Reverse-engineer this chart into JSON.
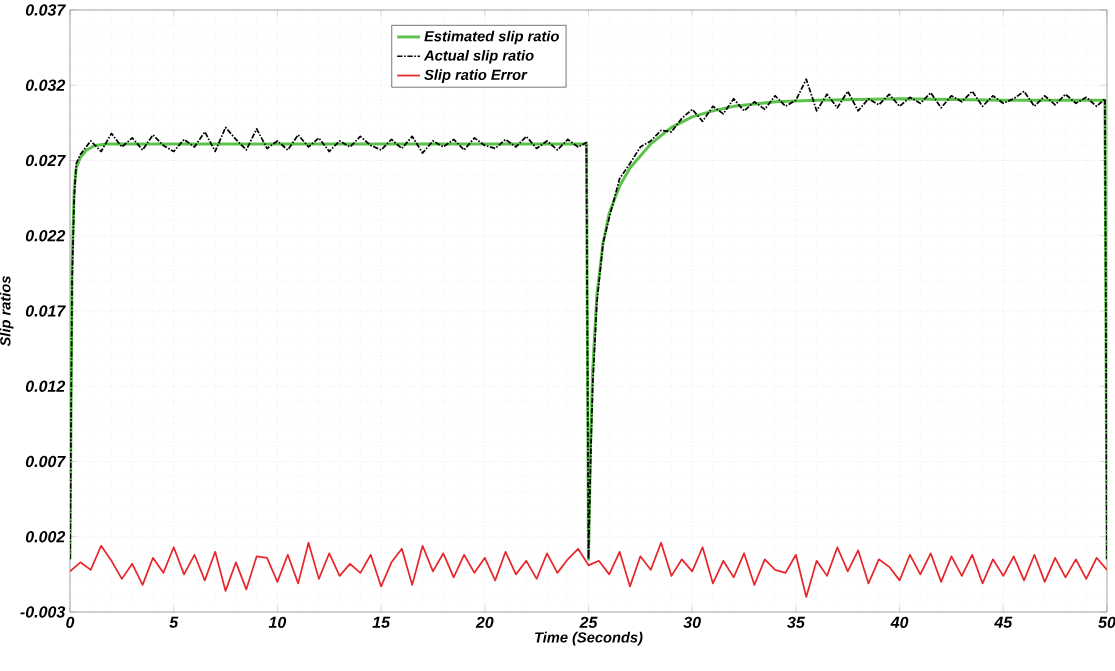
{
  "chart_data": {
    "type": "line",
    "xlabel": "Time (Seconds)",
    "ylabel": "Slip ratios",
    "xlim": [
      0,
      50
    ],
    "ylim": [
      -0.003,
      0.037
    ],
    "xticks": [
      0,
      5,
      10,
      15,
      20,
      25,
      30,
      35,
      40,
      45,
      50
    ],
    "yticks": [
      -0.003,
      0.002,
      0.007,
      0.012,
      0.017,
      0.022,
      0.027,
      0.032,
      0.037
    ],
    "grid": true,
    "legend": "top",
    "marker": "none",
    "series": [
      {
        "name": "Estimated slip ratio",
        "color": "#5bc24a",
        "line_style": "solid",
        "x": [
          0,
          0.1,
          0.2,
          0.3,
          0.5,
          0.8,
          1.2,
          1.8,
          3,
          10,
          20,
          24.9,
          25,
          25.1,
          25.2,
          25.4,
          25.7,
          26,
          26.5,
          27,
          28,
          29,
          30,
          31,
          32,
          34,
          36,
          40,
          45,
          49.9,
          50
        ],
        "values": [
          0.0005,
          0.02,
          0.025,
          0.0265,
          0.0272,
          0.0277,
          0.028,
          0.0281,
          0.0281,
          0.0281,
          0.0281,
          0.0281,
          0.0005,
          0.008,
          0.013,
          0.018,
          0.0215,
          0.0235,
          0.0253,
          0.0265,
          0.0281,
          0.0292,
          0.0299,
          0.0303,
          0.0306,
          0.0309,
          0.031,
          0.0311,
          0.031,
          0.031,
          0.0005
        ]
      },
      {
        "name": "Actual slip ratio",
        "color": "#000000",
        "line_style": "dashed",
        "x": [
          0,
          0.1,
          0.2,
          0.3,
          0.5,
          1,
          1.5,
          2,
          2.5,
          3,
          3.5,
          4,
          4.5,
          5,
          5.5,
          6,
          6.5,
          7,
          7.5,
          8,
          8.5,
          9,
          9.5,
          10,
          10.5,
          11,
          11.5,
          12,
          12.5,
          13,
          13.5,
          14,
          14.5,
          15,
          15.5,
          16,
          16.5,
          17,
          17.5,
          18,
          18.5,
          19,
          19.5,
          20,
          20.5,
          21,
          21.5,
          22,
          22.5,
          23,
          23.5,
          24,
          24.5,
          24.9,
          25,
          25.1,
          25.2,
          25.4,
          25.7,
          26,
          26.5,
          27,
          27.5,
          28,
          28.5,
          29,
          29.5,
          30,
          30.5,
          31,
          31.5,
          32,
          32.5,
          33,
          33.5,
          34,
          34.5,
          35,
          35.5,
          36,
          36.5,
          37,
          37.5,
          38,
          38.5,
          39,
          39.5,
          40,
          40.5,
          41,
          41.5,
          42,
          42.5,
          43,
          43.5,
          44,
          44.5,
          45,
          45.5,
          46,
          46.5,
          47,
          47.5,
          48,
          48.5,
          49,
          49.5,
          49.9,
          50
        ],
        "values": [
          0.0005,
          0.019,
          0.0245,
          0.0268,
          0.0274,
          0.0283,
          0.0276,
          0.0288,
          0.0279,
          0.0285,
          0.0277,
          0.0287,
          0.028,
          0.0276,
          0.0284,
          0.0279,
          0.0289,
          0.0276,
          0.0292,
          0.0284,
          0.0277,
          0.0291,
          0.0278,
          0.0283,
          0.0277,
          0.0287,
          0.0279,
          0.0285,
          0.0276,
          0.0283,
          0.0279,
          0.0286,
          0.028,
          0.0277,
          0.0284,
          0.0278,
          0.0286,
          0.0275,
          0.0283,
          0.0279,
          0.0284,
          0.0277,
          0.0285,
          0.028,
          0.0278,
          0.0284,
          0.0279,
          0.0286,
          0.0278,
          0.0283,
          0.0277,
          0.0284,
          0.0279,
          0.0282,
          0.0005,
          0.007,
          0.012,
          0.0175,
          0.0215,
          0.0232,
          0.0258,
          0.0268,
          0.0279,
          0.0283,
          0.029,
          0.0289,
          0.0298,
          0.0304,
          0.0296,
          0.0306,
          0.0301,
          0.0311,
          0.0303,
          0.0309,
          0.0304,
          0.0313,
          0.0306,
          0.031,
          0.0324,
          0.0303,
          0.0314,
          0.0305,
          0.0316,
          0.0303,
          0.0311,
          0.0307,
          0.0314,
          0.0306,
          0.0312,
          0.0308,
          0.0315,
          0.0305,
          0.0313,
          0.0309,
          0.0316,
          0.0306,
          0.0313,
          0.0308,
          0.0311,
          0.0316,
          0.0306,
          0.0313,
          0.0307,
          0.0314,
          0.0308,
          0.0312,
          0.0306,
          0.0311,
          0.0005
        ]
      },
      {
        "name": "Slip ratio Error",
        "color": "#e8262a",
        "line_style": "solid",
        "x": [
          0,
          0.5,
          1,
          1.5,
          2,
          2.5,
          3,
          3.5,
          4,
          4.5,
          5,
          5.5,
          6,
          6.5,
          7,
          7.5,
          8,
          8.5,
          9,
          9.5,
          10,
          10.5,
          11,
          11.5,
          12,
          12.5,
          13,
          13.5,
          14,
          14.5,
          15,
          15.5,
          16,
          16.5,
          17,
          17.5,
          18,
          18.5,
          19,
          19.5,
          20,
          20.5,
          21,
          21.5,
          22,
          22.5,
          23,
          23.5,
          24,
          24.5,
          25,
          25.5,
          26,
          26.5,
          27,
          27.5,
          28,
          28.5,
          29,
          29.5,
          30,
          30.5,
          31,
          31.5,
          32,
          32.5,
          33,
          33.5,
          34,
          34.5,
          35,
          35.5,
          36,
          36.5,
          37,
          37.5,
          38,
          38.5,
          39,
          39.5,
          40,
          40.5,
          41,
          41.5,
          42,
          42.5,
          43,
          43.5,
          44,
          44.5,
          45,
          45.5,
          46,
          46.5,
          47,
          47.5,
          48,
          48.5,
          49,
          49.5,
          50
        ],
        "values": [
          -0.0003,
          0.0003,
          -0.0002,
          0.0014,
          0.0004,
          -0.0008,
          0.0002,
          -0.0012,
          0.0006,
          -0.0004,
          0.0013,
          -0.0005,
          0.0008,
          -0.0009,
          0.001,
          -0.0016,
          0.0003,
          -0.0015,
          0.0007,
          0.0006,
          -0.001,
          0.0008,
          -0.0011,
          0.0016,
          -0.0008,
          0.0009,
          -0.0006,
          0.0002,
          -0.0004,
          0.0008,
          -0.0013,
          0.0003,
          0.0012,
          -0.0012,
          0.0014,
          -0.0003,
          0.0009,
          -0.0007,
          0.0008,
          -0.0004,
          0.0006,
          -0.0009,
          0.001,
          -0.0005,
          0.0004,
          -0.0008,
          0.0009,
          -0.0004,
          0.0005,
          0.0012,
          0.0001,
          0.0004,
          -0.0005,
          0.001,
          -0.0013,
          0.0007,
          -0.0002,
          0.0016,
          -0.0006,
          0.0005,
          -0.0003,
          0.0013,
          -0.0011,
          0.0004,
          -0.0007,
          0.0009,
          -0.0012,
          0.0005,
          -0.0002,
          -0.0004,
          0.0008,
          -0.002,
          0.0004,
          -0.0006,
          0.0013,
          -0.0003,
          0.0011,
          -0.0011,
          0.0005,
          0.0,
          -0.0009,
          0.0008,
          -0.0005,
          0.0009,
          -0.001,
          0.0007,
          -0.0006,
          0.0008,
          -0.0011,
          0.0005,
          -0.0006,
          0.0007,
          -0.0009,
          0.0008,
          -0.001,
          0.0006,
          -0.0007,
          0.0005,
          -0.0008,
          0.0006,
          -0.0002
        ]
      }
    ]
  }
}
